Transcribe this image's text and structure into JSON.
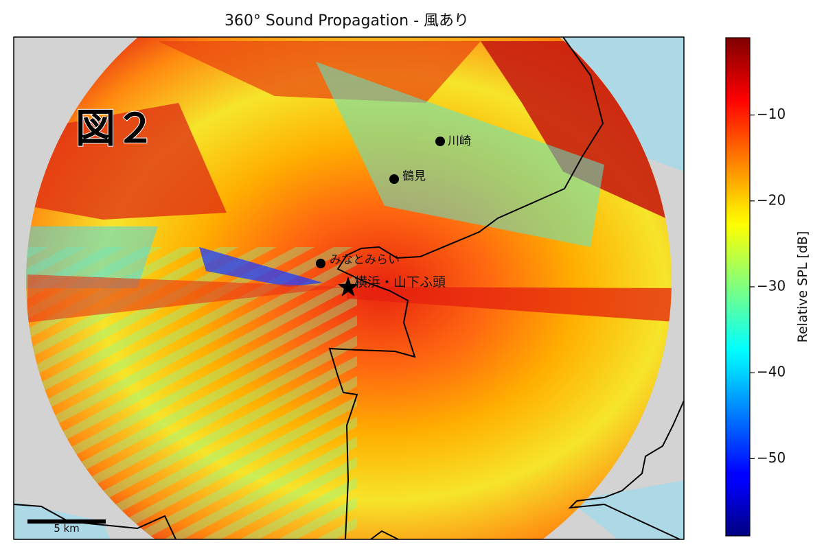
{
  "chart_data": {
    "type": "heatmap",
    "title": "360° Sound Propagation - 風あり",
    "figure_label": "図２",
    "colorbar": {
      "label": "Relative SPL [dB]",
      "colormap": "jet",
      "range": [
        -59,
        -1
      ],
      "ticks": [
        {
          "value": -10,
          "label": "−10"
        },
        {
          "value": -20,
          "label": "−20"
        },
        {
          "value": -30,
          "label": "−30"
        },
        {
          "value": -40,
          "label": "−40"
        },
        {
          "value": -50,
          "label": "−50"
        }
      ]
    },
    "source": {
      "name": "横浜・山下ふ頭",
      "marker": "star"
    },
    "places": [
      {
        "name": "川崎"
      },
      {
        "name": "鶴見"
      },
      {
        "name": "みなとみらい"
      }
    ],
    "scale_bar": {
      "label": "5 km"
    },
    "colors": {
      "land": "#d3d3d3",
      "water": "#add8e6",
      "coastline": "#000000"
    }
  }
}
